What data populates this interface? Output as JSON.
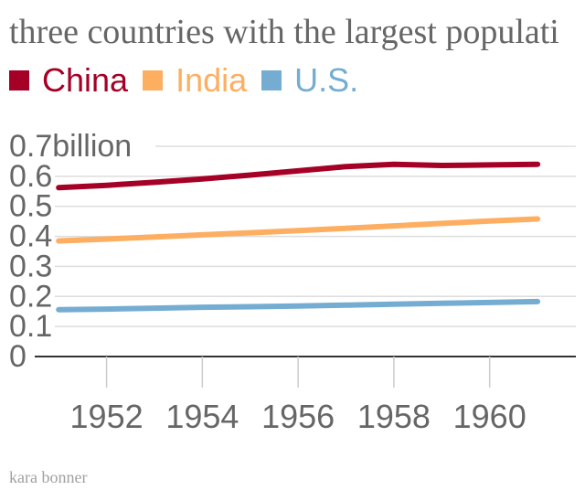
{
  "title": "three countries with the largest populati",
  "credit": "kara bonner",
  "chart_data": {
    "type": "line",
    "title": "three countries with the largest populati",
    "x": [
      1951,
      1952,
      1953,
      1954,
      1955,
      1956,
      1957,
      1958,
      1959,
      1960,
      1961
    ],
    "x_ticks": [
      1952,
      1954,
      1956,
      1958,
      1960
    ],
    "x_tick_labels": [
      "1952",
      "1954",
      "1956",
      "1958",
      "1960"
    ],
    "y_ticks": [
      0,
      0.1,
      0.2,
      0.3,
      0.4,
      0.5,
      0.6,
      0.7
    ],
    "y_tick_labels": [
      "0",
      "0.1",
      "0.2",
      "0.3",
      "0.4",
      "0.5",
      "0.6",
      "0.7billion"
    ],
    "ylim": [
      0,
      0.7
    ],
    "xlim": [
      1950.5,
      1961.8
    ],
    "grid": true,
    "legend_position": "top-left",
    "series": [
      {
        "name": "China",
        "color": "#a50026",
        "values": [
          0.562,
          0.57,
          0.58,
          0.591,
          0.604,
          0.618,
          0.632,
          0.64,
          0.636,
          0.638,
          0.64
        ]
      },
      {
        "name": "India",
        "color": "#fdae61",
        "values": [
          0.385,
          0.391,
          0.398,
          0.405,
          0.412,
          0.419,
          0.427,
          0.435,
          0.443,
          0.451,
          0.458
        ]
      },
      {
        "name": "U.S.",
        "color": "#74add1",
        "values": [
          0.156,
          0.158,
          0.161,
          0.164,
          0.166,
          0.168,
          0.171,
          0.174,
          0.177,
          0.18,
          0.183
        ]
      }
    ]
  }
}
